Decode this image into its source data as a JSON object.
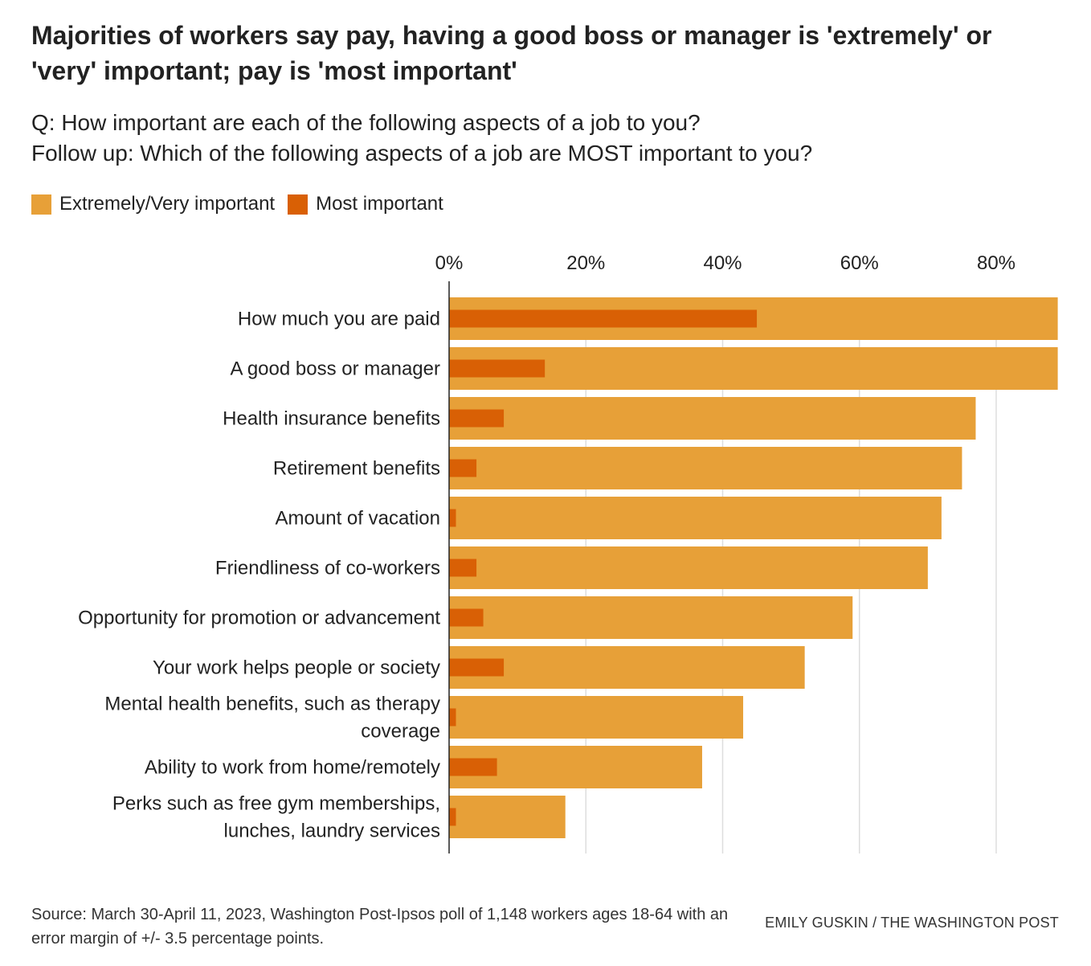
{
  "header": {
    "title": "Majorities of workers say pay, having a good boss or manager is 'extremely' or 'very' important; pay is 'most important'",
    "subtitle_line1": "Q: How important are each of the following aspects of a job to you?",
    "subtitle_line2": "Follow up: Which of the following aspects of a job are MOST important to you?"
  },
  "legend": {
    "items": [
      {
        "label": "Extremely/Very important",
        "color": "#e7a038"
      },
      {
        "label": "Most important",
        "color": "#d96005"
      }
    ]
  },
  "chart_data": {
    "type": "bar",
    "orientation": "horizontal",
    "categories": [
      "How much you are paid",
      "A good boss or manager",
      "Health insurance benefits",
      "Retirement benefits",
      "Amount of vacation",
      "Friendliness of co-workers",
      "Opportunity for promotion or advancement",
      "Your work helps people or society",
      "Mental health benefits, such as therapy coverage",
      "Ability to work from home/remotely",
      "Perks such as free gym memberships, lunches, laundry services"
    ],
    "category_lines": [
      [
        "How much you are paid"
      ],
      [
        "A good boss or manager"
      ],
      [
        "Health insurance benefits"
      ],
      [
        "Retirement benefits"
      ],
      [
        "Amount of vacation"
      ],
      [
        "Friendliness of co-workers"
      ],
      [
        "Opportunity for promotion or advancement"
      ],
      [
        "Your work helps people or society"
      ],
      [
        "Mental health benefits, such as therapy",
        "coverage"
      ],
      [
        "Ability to work from home/remotely"
      ],
      [
        "Perks such as free gym memberships,",
        "lunches, laundry services"
      ]
    ],
    "series": [
      {
        "name": "Extremely/Very important",
        "color": "#e7a038",
        "values": [
          89,
          89,
          77,
          75,
          72,
          70,
          59,
          52,
          43,
          37,
          17
        ]
      },
      {
        "name": "Most important",
        "color": "#d96005",
        "values": [
          45,
          14,
          8,
          4,
          1,
          4,
          5,
          8,
          1,
          7,
          1
        ]
      }
    ],
    "xlim": [
      0,
      89
    ],
    "xticks": [
      0,
      20,
      40,
      60,
      80
    ],
    "xtick_labels": [
      "0%",
      "20%",
      "40%",
      "60%",
      "80%"
    ],
    "grid": true,
    "legend_position": "top-left"
  },
  "footer": {
    "source": "Source: March 30-April 11, 2023, Washington Post-Ipsos poll of 1,148 workers ages 18-64 with an error margin of +/- 3.5 percentage points.",
    "credit": "EMILY GUSKIN / THE WASHINGTON POST"
  }
}
